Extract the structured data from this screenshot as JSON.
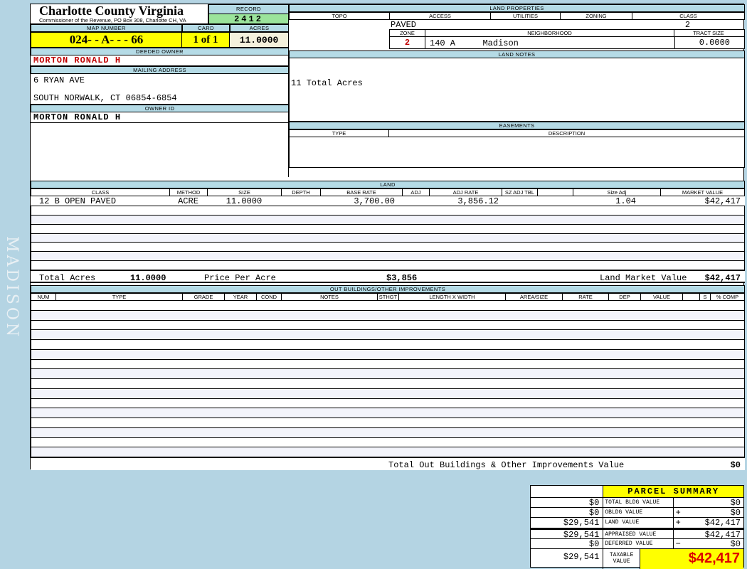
{
  "sidebar": {
    "district_label": "MADISON"
  },
  "colors": {
    "page_bg": "#b4d4e3",
    "section_bar_blue": "#b5dbe6",
    "record_green": "#9be49b",
    "highlight_yellow": "#ffff00",
    "acres_cream": "#f4f1dc",
    "owner_red": "#c00000",
    "taxable_red": "#dd0000"
  },
  "header": {
    "county_title": "Charlotte County Virginia",
    "county_subtitle": "Commissioner of the Revenue, PO Box 308, Charlotte CH, VA",
    "record_label": "RECORD",
    "record_value": "2412",
    "map_number_label": "MAP NUMBER",
    "map_number_value": "024- - A-  -  - 66",
    "card_label": "CARD",
    "card_value": "1 of 1",
    "acres_label": "ACRES",
    "acres_value": "11.0000"
  },
  "owner": {
    "deeded_owner_label": "DEEDED OWNER",
    "deeded_owner": "MORTON RONALD H",
    "mailing_address_label": "MAILING ADDRESS",
    "address_line1": "6 RYAN AVE",
    "address_line2": "SOUTH NORWALK, CT 06854-6854",
    "owner_id_label": "OWNER ID",
    "owner_id": "MORTON RONALD H"
  },
  "land_properties": {
    "title": "LAND PROPERTIES",
    "topo_label": "TOPO",
    "access_label": "ACCESS",
    "utilities_label": "UTILITIES",
    "zoning_label": "ZONING",
    "class_label": "CLASS",
    "access_value": "PAVED",
    "class_value": "2",
    "zone_label": "ZONE",
    "zone_value": "2",
    "neighborhood_label": "NEIGHBORHOOD",
    "neighborhood_code": "140 A",
    "neighborhood_name": "Madison",
    "tract_size_label": "TRACT SIZE",
    "tract_size_value": "0.0000"
  },
  "land_notes": {
    "title": "LAND NOTES",
    "note": "11 Total Acres"
  },
  "easements": {
    "title": "EASEMENTS",
    "type_label": "TYPE",
    "description_label": "DESCRIPTION"
  },
  "land_table": {
    "title": "LAND",
    "columns": [
      "CLASS",
      "METHOD",
      "SIZE",
      "DEPTH",
      "BASE RATE",
      "ADJ",
      "ADJ RATE",
      "SZ ADJ TBL",
      "",
      "Size Adj",
      "MARKET VALUE"
    ],
    "rows": [
      {
        "class": "12 B OPEN PAVED",
        "method": "ACRE",
        "size": "11.0000",
        "depth": "",
        "base_rate": "3,700.00",
        "adj": "",
        "adj_rate": "3,856.12",
        "sz_adj_tbl": "",
        "size_adj": "1.04",
        "market_value": "$42,417"
      }
    ],
    "empty_row_count": 7,
    "total_acres_label": "Total Acres",
    "total_acres_value": "11.0000",
    "price_per_acre_label": "Price Per Acre",
    "price_per_acre_value": "$3,856",
    "land_market_value_label": "Land Market Value",
    "land_market_value": "$42,417"
  },
  "out_buildings": {
    "title": "OUT BUILDINGS/OTHER IMPROVEMENTS",
    "columns": [
      "NUM",
      "TYPE",
      "GRADE",
      "YEAR",
      "COND",
      "NOTES",
      "STHGT",
      "LENGTH X WIDTH",
      "AREA/SIZE",
      "RATE",
      "DEP",
      "VALUE",
      "",
      "S",
      "% COMP"
    ],
    "empty_row_count": 16,
    "total_label": "Total Out Buildings & Other Improvements Value",
    "total_value": "$0"
  },
  "parcel_summary": {
    "title": "PARCEL SUMMARY",
    "rows": [
      {
        "prior": "$0",
        "label": "TOTAL BLDG VALUE",
        "sign": "",
        "value": "$0"
      },
      {
        "prior": "$0",
        "label": "OBLDG VALUE",
        "sign": "+",
        "value": "$0"
      },
      {
        "prior": "$29,541",
        "label": "LAND VALUE",
        "sign": "+",
        "value": "$42,417"
      },
      {
        "prior": "$29,541",
        "label": "APPRAISED VALUE",
        "sign": "",
        "value": "$42,417"
      },
      {
        "prior": "$0",
        "label": "DEFERRED VALUE",
        "sign": "−",
        "value": "$0"
      }
    ],
    "taxable": {
      "prior": "$29,541",
      "label": "TAXABLE VALUE",
      "value": "$42,417"
    }
  }
}
